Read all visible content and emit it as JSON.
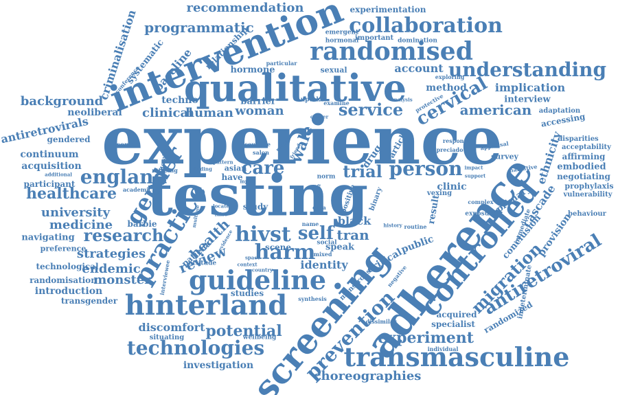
{
  "word_color": "#4a7fb5",
  "background": "#ffffff",
  "words": [
    "experience",
    "testing",
    "qualitative",
    "intervention",
    "adherence",
    "screening",
    "controlled",
    "hinterland",
    "transmasculine",
    "guideline",
    "randomised",
    "practice",
    "collaboration",
    "understanding",
    "england",
    "hivst",
    "harm",
    "gender",
    "technologies",
    "prevention",
    "cervical",
    "person",
    "self",
    "service",
    "care",
    "research",
    "antiretroviral",
    "migration",
    "experiment",
    "potential",
    "healthcare",
    "trial",
    "tran",
    "american",
    "recommendation",
    "programmatic",
    "choreographies",
    "implication",
    "strategies",
    "clinical",
    "human",
    "woman",
    "background",
    "medicine",
    "university",
    "endemic",
    "monster",
    "review",
    "health",
    "discomfort",
    "investigation",
    "continuum",
    "acquisition",
    "participant",
    "navigating",
    "introduction",
    "randomisation",
    "transgender",
    "technological",
    "preference",
    "criminalisation",
    "antiretrovirals",
    "neoliberal",
    "gendered",
    "baseline",
    "relationship",
    "systematic",
    "hormone",
    "barrier",
    "techno",
    "account",
    "method",
    "interview",
    "ethnicity",
    "cascade",
    "provision",
    "embodied",
    "negotiating",
    "affirming",
    "accessing",
    "adaptation",
    "acceptability",
    "disparities",
    "prophylaxis",
    "vulnerability",
    "behaviour",
    "conclusion",
    "immediate",
    "randomized",
    "specialist",
    "acquired",
    "primary",
    "result",
    "clinic",
    "public",
    "critical",
    "monstrous",
    "black",
    "speak",
    "social",
    "identity",
    "scene",
    "studies",
    "situating",
    "wellbeing",
    "experimentation",
    "emergent",
    "important",
    "hormonal",
    "domination",
    "exploring",
    "sexual",
    "particular",
    "uptake",
    "examine",
    "protective",
    "analysis",
    "cancer",
    "countrie",
    "salon",
    "paper",
    "friend",
    "drug",
    "article",
    "response",
    "preciado",
    "appraisal",
    "survey",
    "impact",
    "support",
    "narrative",
    "vexing",
    "complex",
    "exposure",
    "routine",
    "history",
    "binary",
    "positive",
    "norm",
    "latin",
    "data",
    "name",
    "study",
    "asian",
    "have",
    "mpox",
    "pattern",
    "finding",
    "academic",
    "barbie",
    "patient",
    "attitude",
    "interviewee",
    "country",
    "context",
    "mixed",
    "synthesis",
    "dissimilar",
    "negative",
    "individual",
    "indeterminate",
    "utilising",
    "income",
    "additional",
    "multiple",
    "locate",
    "evidence",
    "false",
    "space",
    "literature",
    "conference",
    "wale"
  ]
}
